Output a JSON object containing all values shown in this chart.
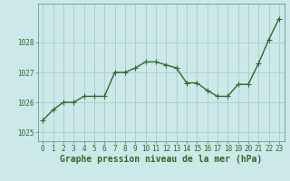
{
  "x": [
    0,
    1,
    2,
    3,
    4,
    5,
    6,
    7,
    8,
    9,
    10,
    11,
    12,
    13,
    14,
    15,
    16,
    17,
    18,
    19,
    20,
    21,
    22,
    23
  ],
  "y": [
    1025.4,
    1025.75,
    1026.0,
    1026.0,
    1026.2,
    1026.2,
    1026.2,
    1027.0,
    1027.0,
    1027.15,
    1027.35,
    1027.35,
    1027.25,
    1027.15,
    1026.65,
    1026.65,
    1026.4,
    1026.2,
    1026.2,
    1026.6,
    1026.6,
    1027.3,
    1028.1,
    1028.8
  ],
  "line_color": "#2d6a2d",
  "marker": "+",
  "marker_size": 4,
  "bg_color": "#cce8e8",
  "grid_color": "#aacccc",
  "xlabel": "Graphe pression niveau de la mer (hPa)",
  "xlabel_color": "#2d6a2d",
  "tick_color": "#2d6a2d",
  "spine_color": "#669999",
  "ylim": [
    1024.7,
    1029.3
  ],
  "xlim": [
    -0.5,
    23.5
  ],
  "yticks": [
    1025,
    1026,
    1027,
    1028
  ],
  "xticks": [
    0,
    1,
    2,
    3,
    4,
    5,
    6,
    7,
    8,
    9,
    10,
    11,
    12,
    13,
    14,
    15,
    16,
    17,
    18,
    19,
    20,
    21,
    22,
    23
  ],
  "tick_fontsize": 5.5,
  "xlabel_fontsize": 7.0,
  "line_width": 1.0,
  "marker_linewidth": 0.8
}
